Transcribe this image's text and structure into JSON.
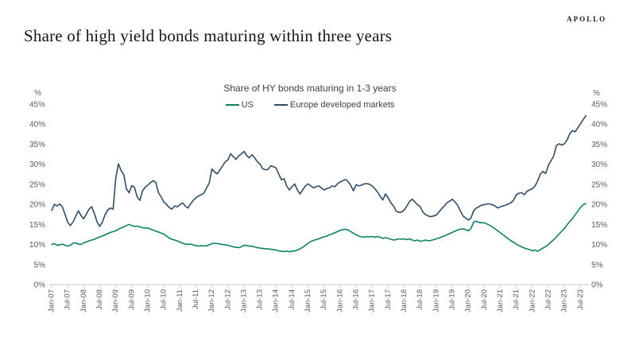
{
  "brand": "APOLLO",
  "page_title": "Share of high yield bonds maturing within three years",
  "chart_data": {
    "type": "line",
    "title": "Share of HY bonds maturing in 1-3 years",
    "y_axis_unit": "%",
    "ylim": [
      0,
      45
    ],
    "y_tick_step": 5,
    "y_tick_labels": [
      "0%",
      "5%",
      "10%",
      "15%",
      "20%",
      "25%",
      "30%",
      "35%",
      "40%",
      "45%"
    ],
    "dual_y_axis": true,
    "grid": false,
    "legend_position": "top-center",
    "x_frequency": "monthly",
    "x_start": "Jan-07",
    "x_end": "Sep-23",
    "x_tick_every": 6,
    "x_tick_labels": [
      "Jan-07",
      "Jul-07",
      "Jan-08",
      "Jul-08",
      "Jan-09",
      "Jul-09",
      "Jan-10",
      "Jul-10",
      "Jan-11",
      "Jul-11",
      "Jan-12",
      "Jul-12",
      "Jan-13",
      "Jul-13",
      "Jan-14",
      "Jul-14",
      "Jan-15",
      "Jul-15",
      "Jan-16",
      "Jul-16",
      "Jan-17",
      "Jul-17",
      "Jan-18",
      "Jul-18",
      "Jan-19",
      "Jul-19",
      "Jan-20",
      "Jul-20",
      "Jan-21",
      "Jul-21",
      "Jan-22",
      "Jul-22",
      "Jan-23",
      "Jul-23"
    ],
    "series": [
      {
        "name": "US",
        "color": "#0E8160",
        "values": [
          10.0,
          10.2,
          9.8,
          9.9,
          10.1,
          9.8,
          9.6,
          9.8,
          10.3,
          10.4,
          10.1,
          10.0,
          10.4,
          10.6,
          10.9,
          11.1,
          11.3,
          11.6,
          11.9,
          12.1,
          12.4,
          12.7,
          13.0,
          13.2,
          13.4,
          13.8,
          14.1,
          14.4,
          14.7,
          15.0,
          14.7,
          14.5,
          14.6,
          14.4,
          14.2,
          14.1,
          14.1,
          13.8,
          13.6,
          13.3,
          13.1,
          12.8,
          12.6,
          12.1,
          11.6,
          11.3,
          11.1,
          10.9,
          10.6,
          10.3,
          10.1,
          10.0,
          10.1,
          9.9,
          9.7,
          9.6,
          9.7,
          9.6,
          9.7,
          9.9,
          10.2,
          10.3,
          10.2,
          10.1,
          10.0,
          9.9,
          9.8,
          9.6,
          9.4,
          9.3,
          9.2,
          9.4,
          9.8,
          9.7,
          9.6,
          9.5,
          9.4,
          9.2,
          9.1,
          9.0,
          8.9,
          8.9,
          8.8,
          8.7,
          8.6,
          8.4,
          8.3,
          8.2,
          8.3,
          8.2,
          8.3,
          8.4,
          8.6,
          8.9,
          9.3,
          9.8,
          10.3,
          10.7,
          11.0,
          11.2,
          11.4,
          11.7,
          11.9,
          12.1,
          12.4,
          12.6,
          12.9,
          13.2,
          13.5,
          13.7,
          13.8,
          13.6,
          13.2,
          12.8,
          12.4,
          12.1,
          11.9,
          11.8,
          12.0,
          11.9,
          12.0,
          11.8,
          12.0,
          11.8,
          11.5,
          11.7,
          11.5,
          11.3,
          11.1,
          11.2,
          11.4,
          11.3,
          11.4,
          11.2,
          11.4,
          11.1,
          10.9,
          11.1,
          10.8,
          10.9,
          11.1,
          10.9,
          11.0,
          11.2,
          11.4,
          11.6,
          11.9,
          12.1,
          12.4,
          12.7,
          13.0,
          13.3,
          13.6,
          13.8,
          13.9,
          13.7,
          13.4,
          14.0,
          15.6,
          15.8,
          15.5,
          15.4,
          15.4,
          15.1,
          14.8,
          14.4,
          13.9,
          13.4,
          12.9,
          12.4,
          11.9,
          11.4,
          10.9,
          10.5,
          10.1,
          9.7,
          9.4,
          9.1,
          8.9,
          8.7,
          8.4,
          8.6,
          8.3,
          8.7,
          9.1,
          9.5,
          10.0,
          10.6,
          11.2,
          11.9,
          12.6,
          13.3,
          14.0,
          14.9,
          15.7,
          16.5,
          17.4,
          18.3,
          19.2,
          19.9,
          20.2
        ]
      },
      {
        "name": "Europe developed markets",
        "color": "#2F4D6B",
        "values": [
          18.5,
          20.0,
          19.6,
          20.1,
          19.4,
          17.5,
          15.5,
          14.7,
          15.6,
          17.0,
          18.4,
          17.2,
          16.4,
          17.6,
          18.8,
          19.4,
          17.7,
          15.6,
          14.5,
          15.6,
          17.4,
          18.6,
          19.1,
          18.8,
          26.5,
          30.1,
          28.4,
          27.4,
          23.8,
          22.9,
          24.7,
          24.2,
          21.9,
          21.0,
          23.3,
          24.3,
          24.8,
          25.4,
          25.9,
          25.5,
          22.9,
          21.8,
          20.6,
          20.0,
          19.2,
          18.8,
          19.6,
          19.4,
          19.9,
          20.4,
          19.6,
          19.1,
          20.1,
          21.0,
          21.6,
          22.1,
          22.4,
          22.8,
          24.1,
          25.3,
          28.8,
          28.1,
          27.6,
          28.6,
          29.6,
          30.6,
          31.1,
          32.6,
          31.9,
          31.2,
          32.1,
          32.6,
          33.2,
          32.2,
          31.6,
          32.4,
          31.6,
          30.6,
          30.1,
          28.9,
          28.6,
          28.7,
          29.6,
          29.4,
          29.1,
          27.6,
          26.1,
          26.4,
          24.6,
          23.6,
          24.4,
          25.1,
          23.6,
          22.6,
          23.6,
          24.6,
          25.1,
          24.6,
          24.1,
          24.4,
          24.6,
          24.1,
          23.6,
          23.9,
          24.1,
          24.6,
          24.4,
          25.1,
          25.6,
          25.9,
          26.2,
          25.7,
          24.7,
          23.4,
          24.9,
          24.6,
          24.8,
          25.1,
          25.2,
          25.0,
          24.6,
          23.9,
          23.1,
          22.0,
          21.1,
          22.6,
          21.6,
          20.4,
          19.6,
          18.3,
          18.0,
          18.1,
          18.6,
          19.6,
          20.7,
          21.3,
          20.6,
          19.9,
          19.4,
          18.1,
          17.4,
          17.1,
          16.9,
          17.1,
          17.3,
          18.1,
          18.9,
          19.6,
          20.4,
          20.8,
          21.3,
          20.6,
          19.8,
          18.4,
          17.1,
          16.6,
          16.1,
          16.6,
          18.4,
          19.1,
          19.4,
          19.8,
          19.9,
          20.1,
          20.1,
          19.9,
          19.6,
          19.1,
          19.4,
          19.6,
          19.8,
          20.1,
          20.4,
          21.1,
          22.4,
          22.8,
          22.9,
          22.4,
          23.3,
          23.6,
          23.9,
          24.6,
          25.9,
          27.6,
          28.2,
          27.7,
          29.8,
          30.9,
          32.1,
          34.7,
          35.1,
          34.8,
          35.1,
          36.1,
          37.6,
          38.4,
          38.1,
          39.1,
          40.1,
          41.1,
          42.1
        ]
      }
    ]
  }
}
